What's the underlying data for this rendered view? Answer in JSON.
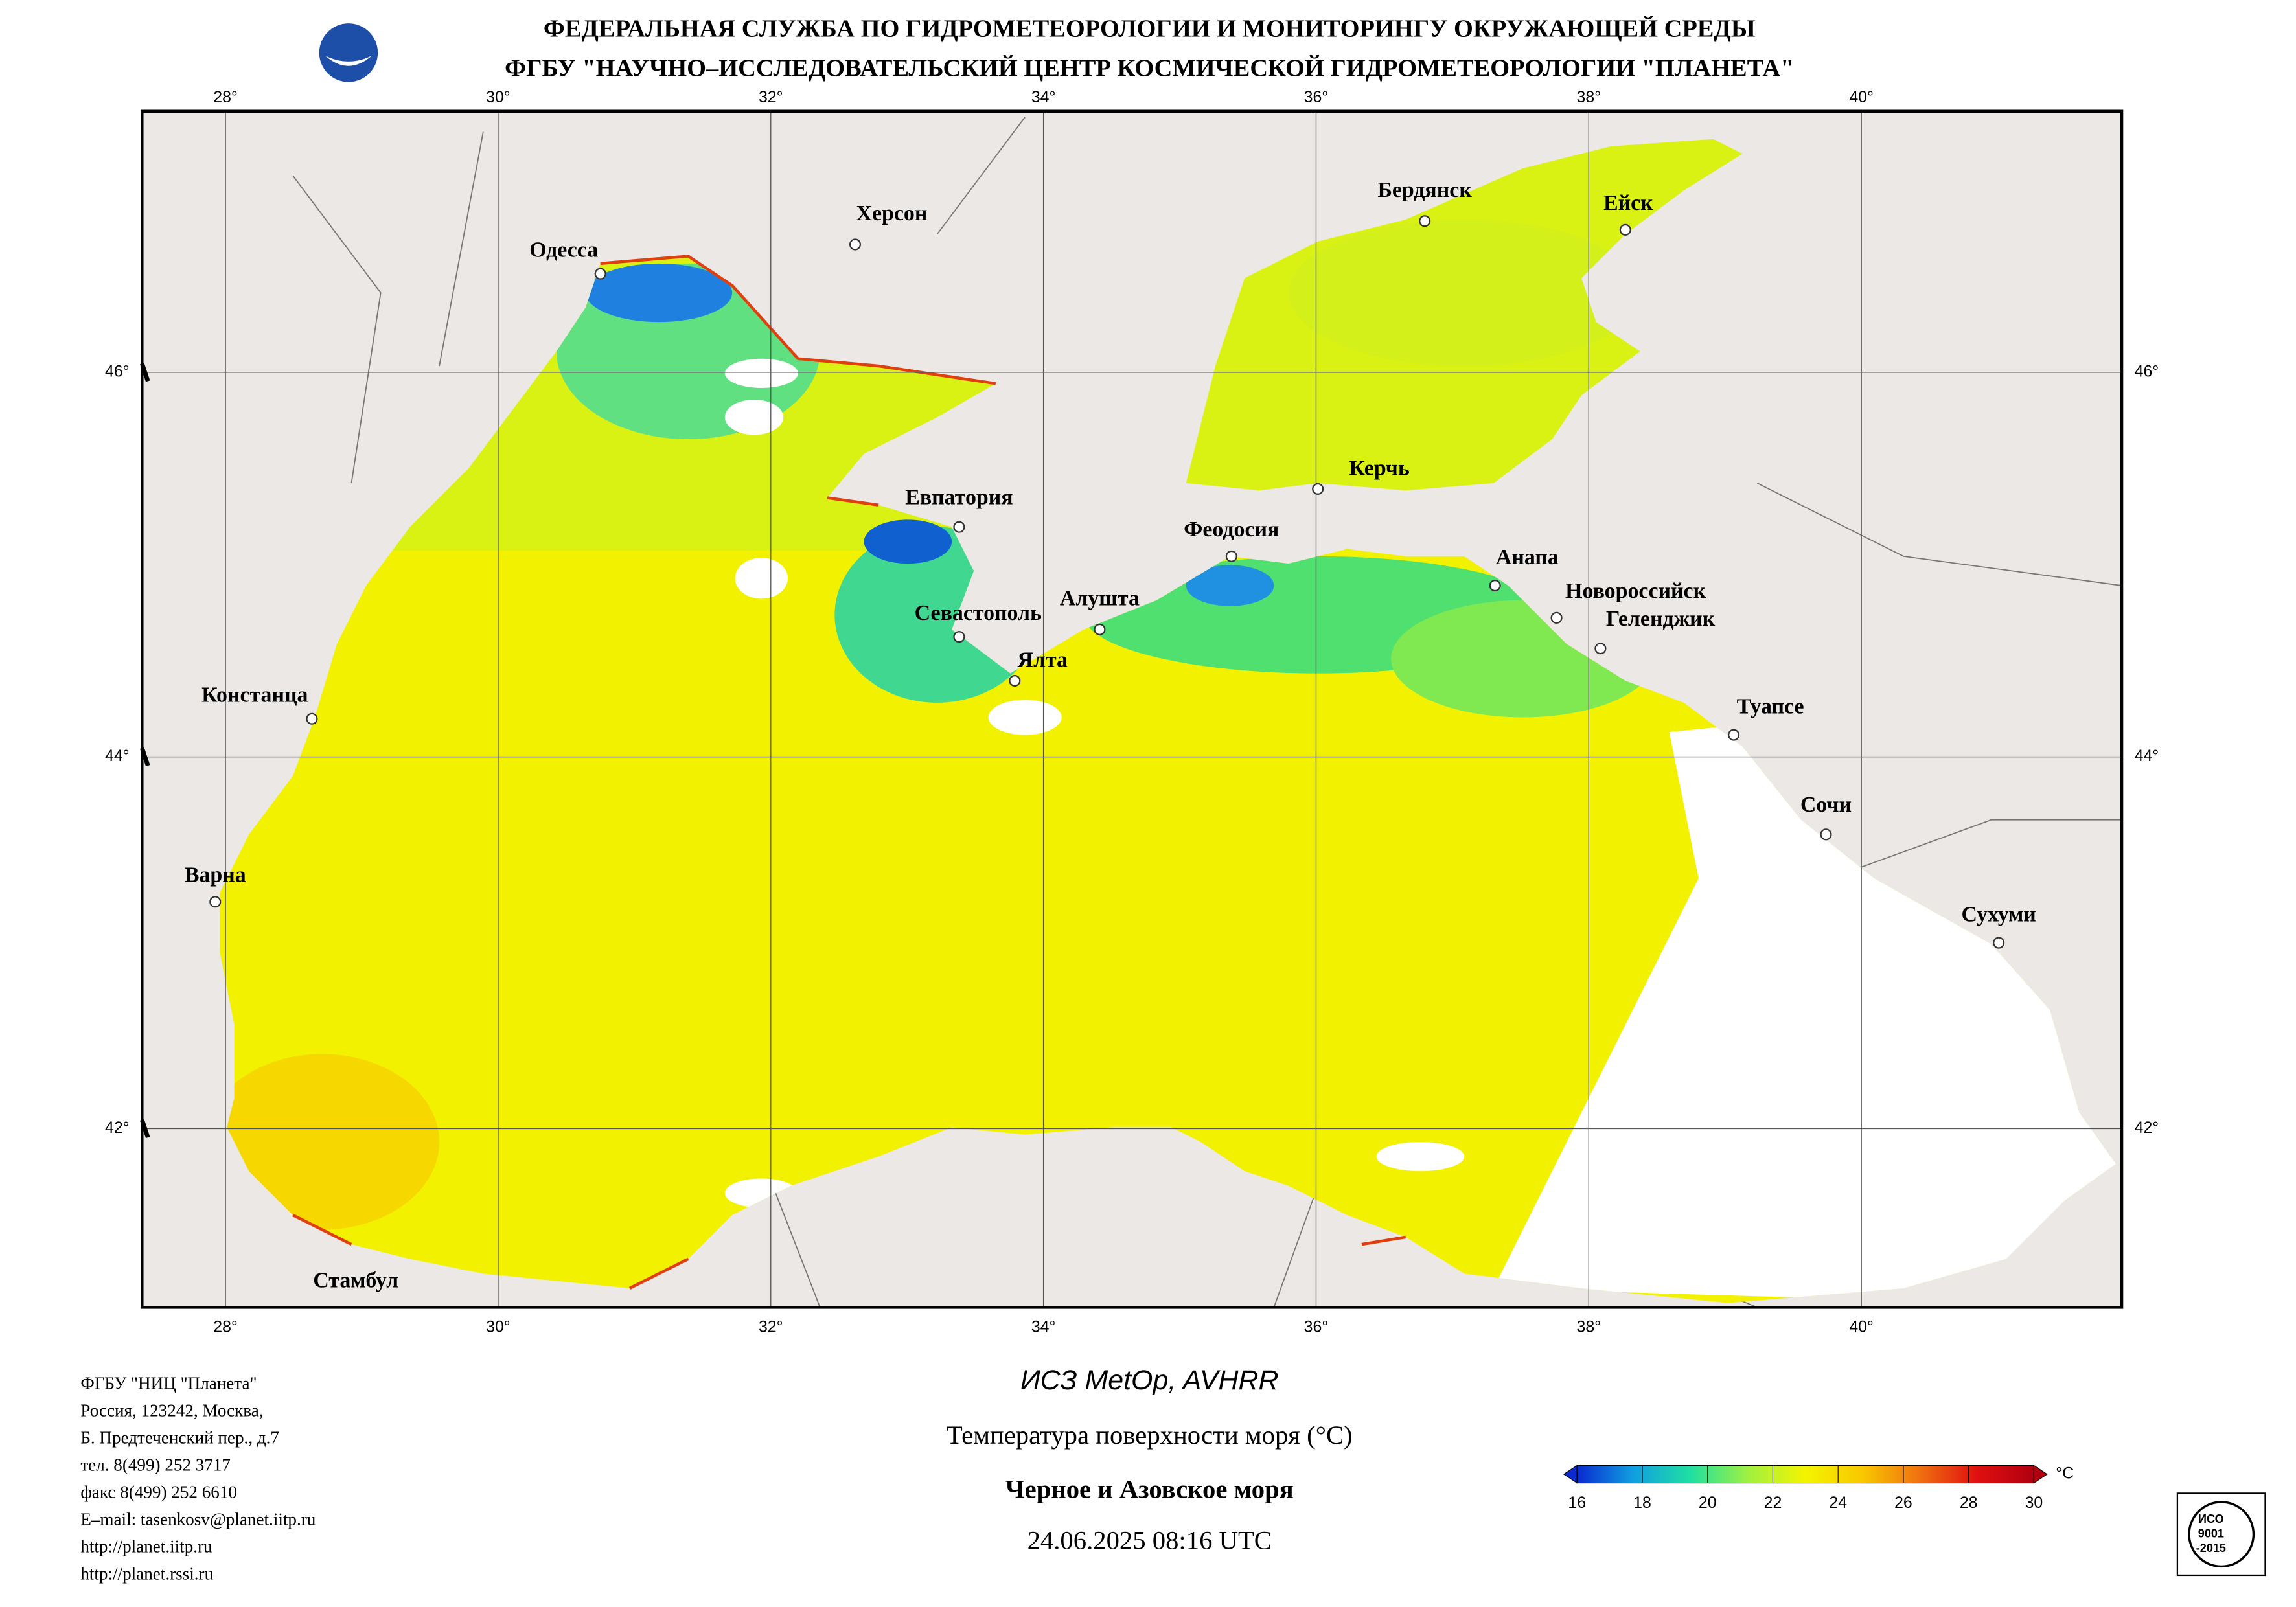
{
  "header": {
    "agency": "ФЕДЕРАЛЬНАЯ СЛУЖБА ПО ГИДРОМЕТЕОРОЛОГИИ И МОНИТОРИНГУ ОКРУЖАЮЩЕЙ СРЕДЫ",
    "center": "ФГБУ \"НАУЧНО–ИССЛЕДОВАТЕЛЬСКИЙ ЦЕНТР КОСМИЧЕСКОЙ ГИДРОМЕТЕОРОЛОГИИ \"ПЛАНЕТА\""
  },
  "map": {
    "lon_ticks": [
      {
        "value": 28,
        "label": "28°"
      },
      {
        "value": 30,
        "label": "30°"
      },
      {
        "value": 32,
        "label": "32°"
      },
      {
        "value": 34,
        "label": "34°"
      },
      {
        "value": 36,
        "label": "36°"
      },
      {
        "value": 38,
        "label": "38°"
      },
      {
        "value": 40,
        "label": "40°"
      }
    ],
    "lat_ticks": [
      {
        "value": 42,
        "label": "42°"
      },
      {
        "value": 44,
        "label": "44°"
      },
      {
        "value": 46,
        "label": "46°"
      }
    ],
    "cities": [
      "Херсон",
      "Одесса",
      "Бердянск",
      "Ейск",
      "Керчь",
      "Евпатория",
      "Феодосия",
      "Анапа",
      "Новороссийск",
      "Геленджик",
      "Алушта",
      "Севастополь",
      "Ялта",
      "Туапсе",
      "Констанца",
      "Сочи",
      "Варна",
      "Сухуми",
      "Стамбул"
    ]
  },
  "footer": {
    "address": [
      "ФГБУ \"НИЦ \"Планета\"",
      "Россия, 123242, Москва,",
      "Б. Предтеченский пер., д.7",
      "тел. 8(499) 252 3717",
      "факс 8(499) 252 6610",
      "E–mail: tasenkosv@planet.iitp.ru",
      "http://planet.iitp.ru",
      "http://planet.rssi.ru"
    ],
    "satellite": "ИСЗ MetOp, AVHRR",
    "parameter": "Температура поверхности моря (°С)",
    "region": "Черное и Азовское моря",
    "datetime": "24.06.2025 08:16 UTC"
  },
  "colorbar": {
    "range": [
      16,
      30
    ],
    "ticks": [
      16,
      18,
      20,
      22,
      24,
      26,
      28,
      30
    ],
    "unit": "°C",
    "colors": [
      "#0a2ad0",
      "#10a0e0",
      "#20e0a0",
      "#a0f040",
      "#f4f400",
      "#f8c800",
      "#f07010",
      "#e01010",
      "#b00010"
    ]
  },
  "badge": [
    "ИСО",
    "9001",
    "-2015"
  ]
}
